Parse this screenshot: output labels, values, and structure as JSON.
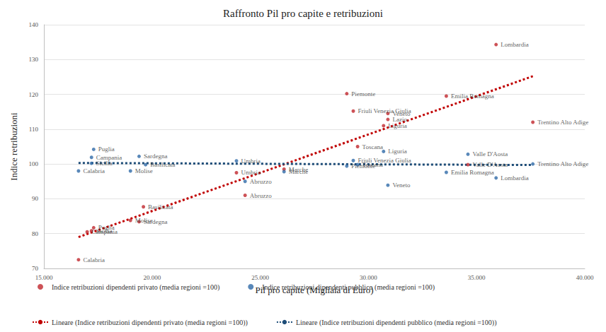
{
  "chart_data": {
    "type": "scatter",
    "title": "Raffronto Pil pro capite e retribuzioni",
    "xlabel": "Pil pro capite (Migliaia di Euro)",
    "ylabel": "Indice retribuzioni",
    "xlim": [
      15000,
      40000
    ],
    "xticks": [
      {
        "value": 15000,
        "label": "15.000"
      },
      {
        "value": 20000,
        "label": "20.000"
      },
      {
        "value": 25000,
        "label": "25.000"
      },
      {
        "value": 30000,
        "label": "30.000"
      },
      {
        "value": 35000,
        "label": "35.000"
      },
      {
        "value": 40000,
        "label": "40.000"
      }
    ],
    "ylim": [
      70,
      140
    ],
    "yticks": [
      70,
      80,
      90,
      100,
      110,
      120,
      130,
      140
    ],
    "grid": true,
    "legend": "bottom",
    "series": [
      {
        "name": "Indice retribuzioni dipendenti privato (media regioni =100)",
        "type": "scatter",
        "marker": "circle",
        "color": "#c0272d",
        "labels": [
          "Lombardia",
          "Emilia Romagna",
          "Trentino Alto Adige",
          "Piemonte",
          "Friuli Venezia Giulia",
          "Veneto",
          "Lazio",
          "Liguria",
          "Toscana",
          "Valle D'Aosta",
          "Marche",
          "Umbria",
          "Abruzzo",
          "Basilicata",
          "Molise",
          "Sardegna",
          "Puglia",
          "Sicilia",
          "Campania",
          "Calabria"
        ],
        "x": [
          35900,
          33600,
          37600,
          29000,
          29300,
          30900,
          30900,
          30700,
          29500,
          34600,
          26100,
          23900,
          24300,
          19600,
          19000,
          19400,
          17300,
          17200,
          17000,
          16600
        ],
        "values": [
          134.3,
          119.5,
          112,
          120.2,
          115.2,
          114.5,
          112.8,
          111,
          105,
          99.8,
          98.5,
          97.5,
          91,
          87.7,
          83.8,
          83.4,
          81.7,
          80.8,
          80.5,
          72.5
        ]
      },
      {
        "name": "Indice retribuzioni dipendenti pubblico (media regioni =100)",
        "type": "scatter",
        "marker": "circle",
        "color": "#2f6aa8",
        "labels": [
          "Puglia",
          "Campania",
          "Sardegna",
          "Sicilia",
          "Calabria",
          "Basilicata",
          "Molise",
          "Umbria",
          "Abruzzo",
          "Marche",
          "Liguria",
          "Friuli Venezia Giulia",
          "Toscana",
          "Piemonte",
          "Veneto",
          "Valle D'Aosta",
          "Emilia Romagna",
          "Lombardia",
          "Trentino Alto Adige"
        ],
        "x": [
          17300,
          17200,
          19400,
          17200,
          16600,
          19700,
          19000,
          23900,
          24300,
          26100,
          30700,
          29300,
          29500,
          29000,
          30900,
          34600,
          33600,
          35900,
          37600
        ],
        "values": [
          104.2,
          101.9,
          102.2,
          100.2,
          98,
          99.8,
          98,
          100.9,
          95,
          97.8,
          103.6,
          101,
          99.8,
          99.4,
          93.9,
          102.8,
          97.6,
          96,
          100
        ]
      },
      {
        "name": "Lineare (Indice retribuzioni dipendenti privato (media regioni =100))",
        "type": "line",
        "line_style": "dotted",
        "color": "#c00000",
        "x": [
          16600,
          37600
        ],
        "values": [
          79,
          125.2
        ]
      },
      {
        "name": "Lineare (Indice retribuzioni dipendenti pubblico (media regioni =100))",
        "type": "line",
        "line_style": "dotted",
        "color": "#1f4e79",
        "x": [
          16600,
          37600
        ],
        "values": [
          100.3,
          99.7
        ]
      }
    ]
  }
}
